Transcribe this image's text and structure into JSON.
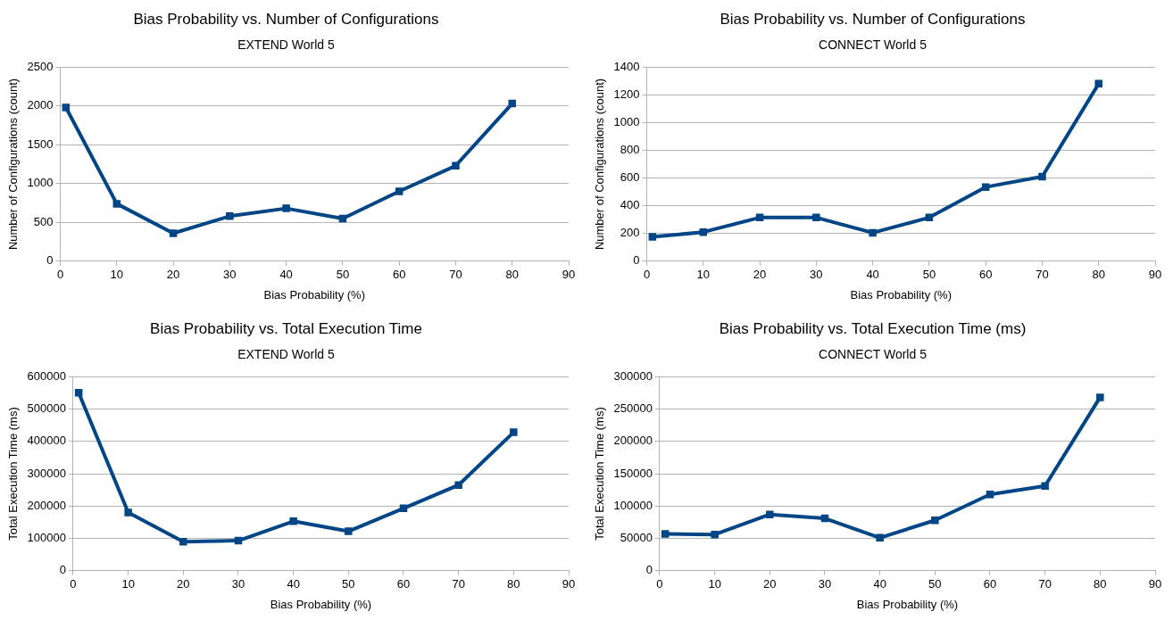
{
  "chart_data": [
    {
      "type": "line",
      "title": "Bias Probability vs. Number of Configurations",
      "subtitle": "EXTEND World 5",
      "xlabel": "Bias Probability (%)",
      "ylabel": "Number of Configurations (count)",
      "x": [
        1,
        10,
        20,
        30,
        40,
        50,
        60,
        70,
        80
      ],
      "series": [
        {
          "color": "#004586",
          "values": [
            1980,
            740,
            360,
            580,
            680,
            550,
            900,
            1230,
            2030
          ]
        }
      ],
      "xlim": [
        0,
        90
      ],
      "xticks": [
        0,
        10,
        20,
        30,
        40,
        50,
        60,
        70,
        80,
        90
      ],
      "ylim": [
        0,
        2500
      ],
      "yticks": [
        0,
        500,
        1000,
        1500,
        2000,
        2500
      ],
      "grid": "y",
      "legend": false,
      "marker": "square",
      "line_style": "solid"
    },
    {
      "type": "line",
      "title": "Bias Probability vs. Number of Configurations",
      "subtitle": "CONNECT World 5",
      "xlabel": "Bias Probability (%)",
      "ylabel": "Number of Configurations (count)",
      "x": [
        1,
        10,
        20,
        30,
        40,
        50,
        60,
        70,
        80
      ],
      "series": [
        {
          "color": "#004586",
          "values": [
            175,
            210,
            315,
            315,
            205,
            315,
            535,
            610,
            1280
          ]
        }
      ],
      "xlim": [
        0,
        90
      ],
      "xticks": [
        0,
        10,
        20,
        30,
        40,
        50,
        60,
        70,
        80,
        90
      ],
      "ylim": [
        0,
        1400
      ],
      "yticks": [
        0,
        200,
        400,
        600,
        800,
        1000,
        1200,
        1400
      ],
      "grid": "y",
      "legend": false,
      "marker": "square",
      "line_style": "solid"
    },
    {
      "type": "line",
      "title": "Bias Probability vs. Total Execution Time",
      "subtitle": "EXTEND World 5",
      "xlabel": "Bias Probability (%)",
      "ylabel": "Total Execution Time (ms)",
      "x": [
        1,
        10,
        20,
        30,
        40,
        50,
        60,
        70,
        80
      ],
      "series": [
        {
          "color": "#004586",
          "values": [
            550000,
            180000,
            90000,
            93000,
            153000,
            122000,
            193000,
            265000,
            428000
          ]
        }
      ],
      "xlim": [
        0,
        90
      ],
      "xticks": [
        0,
        10,
        20,
        30,
        40,
        50,
        60,
        70,
        80,
        90
      ],
      "ylim": [
        0,
        600000
      ],
      "yticks": [
        0,
        100000,
        200000,
        300000,
        400000,
        500000,
        600000
      ],
      "grid": "y",
      "legend": false,
      "marker": "square",
      "line_style": "solid"
    },
    {
      "type": "line",
      "title": "Bias Probability vs. Total Execution Time (ms)",
      "subtitle": "CONNECT World 5",
      "xlabel": "Bias Probability (%)",
      "ylabel": "Total Execution Time (ms)",
      "x": [
        1,
        10,
        20,
        30,
        40,
        50,
        60,
        70,
        80
      ],
      "series": [
        {
          "color": "#004586",
          "values": [
            57000,
            56000,
            87000,
            81000,
            51000,
            78000,
            118000,
            131000,
            268000
          ]
        }
      ],
      "xlim": [
        0,
        90
      ],
      "xticks": [
        0,
        10,
        20,
        30,
        40,
        50,
        60,
        70,
        80,
        90
      ],
      "ylim": [
        0,
        300000
      ],
      "yticks": [
        0,
        50000,
        100000,
        150000,
        200000,
        250000,
        300000
      ],
      "grid": "y",
      "legend": false,
      "marker": "square",
      "line_style": "solid"
    }
  ]
}
